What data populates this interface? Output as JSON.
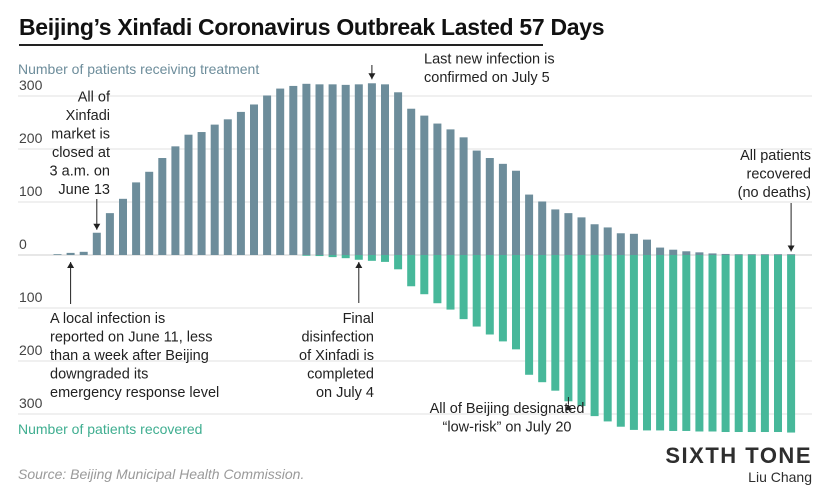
{
  "title": "Beijing’s Xinfadi Coronavirus Outbreak Lasted 57 Days",
  "source": "Source: Beijing Municipal Health Commission.",
  "brand": "SIXTH TONE",
  "author": "Liu Chang",
  "colors": {
    "treatment": "#6d8d9b",
    "recovered": "#47b89a",
    "text": "#222222",
    "grid": "#e2e2e2"
  },
  "chart_data": {
    "type": "bar",
    "ylabel_top": "Number of patients receiving treatment",
    "ylabel_bottom": "Number of patients recovered",
    "yticks": [
      {
        "value": 300,
        "label": "300"
      },
      {
        "value": 200,
        "label": "200"
      },
      {
        "value": 100,
        "label": "100"
      },
      {
        "value": 0,
        "label": "0"
      },
      {
        "value": -100,
        "label": "100"
      },
      {
        "value": -200,
        "label": "200"
      },
      {
        "value": -300,
        "label": "300"
      }
    ],
    "ylim": [
      -340,
      330
    ],
    "grid": true,
    "series": [
      {
        "name": "Number of patients receiving treatment",
        "values": [
          1,
          4,
          6,
          42,
          79,
          106,
          137,
          157,
          183,
          205,
          227,
          232,
          246,
          256,
          270,
          284,
          301,
          314,
          319,
          323,
          322,
          322,
          321,
          322,
          324,
          322,
          307,
          276,
          263,
          248,
          237,
          222,
          197,
          183,
          172,
          159,
          114,
          101,
          86,
          79,
          71,
          58,
          52,
          41,
          40,
          29,
          14,
          10,
          7,
          5,
          3,
          2,
          1,
          1,
          1,
          1,
          1
        ]
      },
      {
        "name": "Number of patients recovered",
        "values": [
          0,
          0,
          0,
          0,
          0,
          0,
          0,
          0,
          0,
          0,
          0,
          0,
          0,
          0,
          0,
          0,
          0,
          0,
          0,
          1,
          2,
          4,
          6,
          9,
          11,
          13,
          27,
          59,
          74,
          91,
          103,
          121,
          135,
          150,
          163,
          178,
          226,
          240,
          256,
          276,
          285,
          304,
          314,
          324,
          330,
          331,
          331,
          332,
          332,
          333,
          333,
          334,
          334,
          334,
          334,
          334,
          335
        ]
      }
    ],
    "annotations": [
      {
        "lines": [
          "All of",
          "Xinfadi",
          "market is",
          "closed at",
          "3 a.m. on",
          "June 13"
        ],
        "bar": 3,
        "align": "right",
        "arrow": "down"
      },
      {
        "lines": [
          "Last new infection is",
          "confirmed on July 5"
        ],
        "bar": 24,
        "align": "left",
        "arrow": "down"
      },
      {
        "lines": [
          "All patients",
          "recovered",
          "(no deaths)"
        ],
        "bar": 56,
        "align": "right",
        "arrow": "down"
      },
      {
        "lines": [
          "A local infection is",
          "reported on June 11, less",
          "than a week after Beijing",
          "downgraded its",
          "emergency response level"
        ],
        "bar": 1,
        "align": "left",
        "arrow": "up"
      },
      {
        "lines": [
          "Final",
          "disinfection",
          "of Xinfadi is",
          "completed",
          "on July 4"
        ],
        "bar": 23,
        "align": "right",
        "arrow": "up"
      },
      {
        "lines": [
          "All of Beijing designated",
          "“low-risk” on July 20"
        ],
        "bar": 39,
        "align": "center",
        "arrow": "up"
      }
    ]
  }
}
